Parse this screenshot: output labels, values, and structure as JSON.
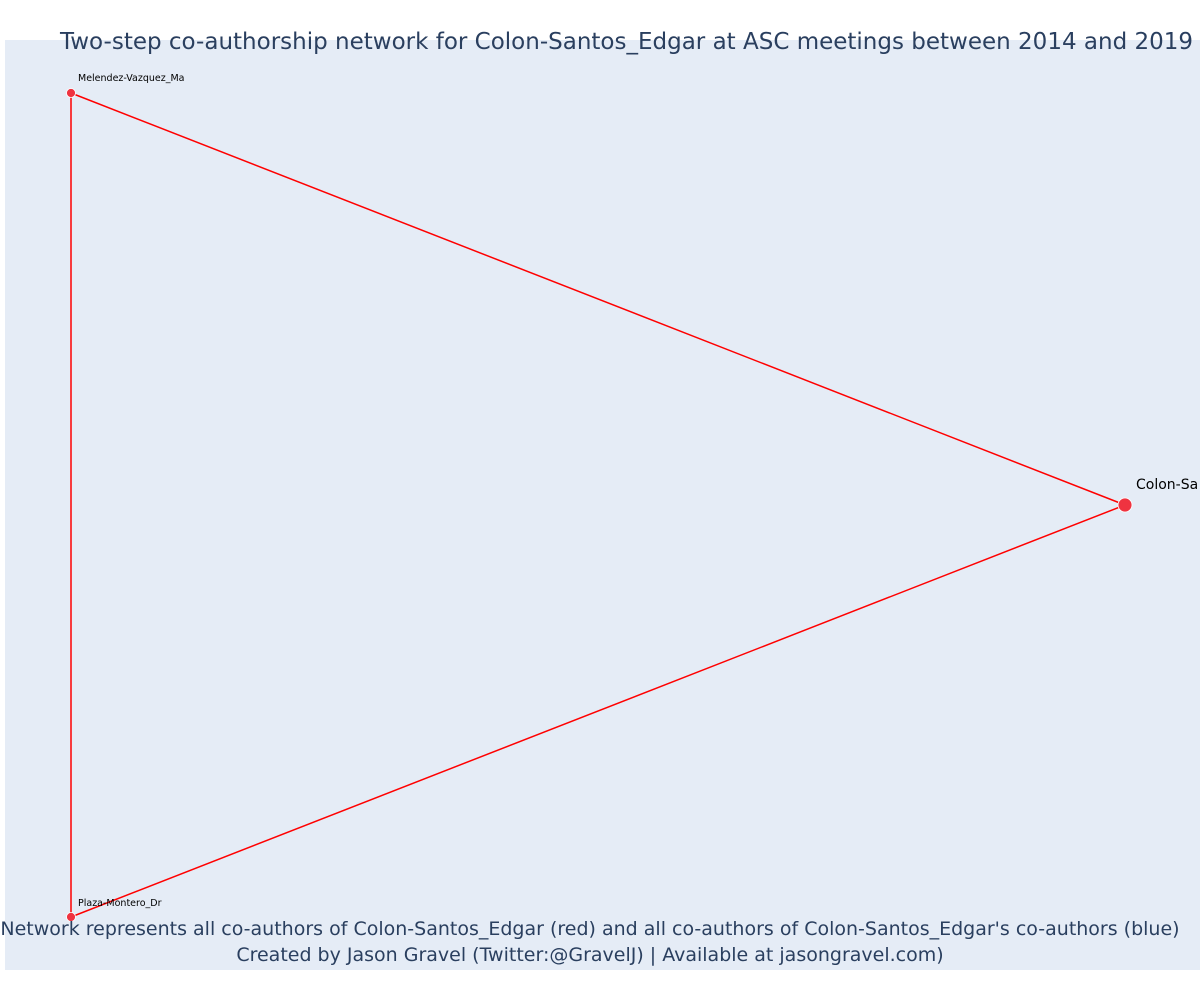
{
  "figure": {
    "title": "Two-step co-authorship network for Colon-Santos_Edgar at ASC meetings between 2014 and 2019",
    "annotation_line1": "Network represents all co-authors of Colon-Santos_Edgar (red) and all co-authors of Colon-Santos_Edgar's co-authors (blue)",
    "annotation_line2": "Created by Jason Gravel (Twitter:@GravelJ) | Available at jasongravel.com)"
  },
  "colors": {
    "plot_background": "#e5ecf6",
    "edge": "#ff0000",
    "node": "#ef3340",
    "text": "#2a3f5f"
  },
  "network": {
    "nodes": [
      {
        "id": "melendez",
        "label": "Melendez-Vazquez_Ma",
        "group": "co-author"
      },
      {
        "id": "plaza",
        "label": "Plaza-Montero_Dr",
        "group": "co-author"
      },
      {
        "id": "colon",
        "label": "Colon-Sa",
        "group": "focal"
      }
    ],
    "edges": [
      {
        "source": "melendez",
        "target": "colon"
      },
      {
        "source": "melendez",
        "target": "plaza"
      },
      {
        "source": "plaza",
        "target": "colon"
      }
    ]
  }
}
